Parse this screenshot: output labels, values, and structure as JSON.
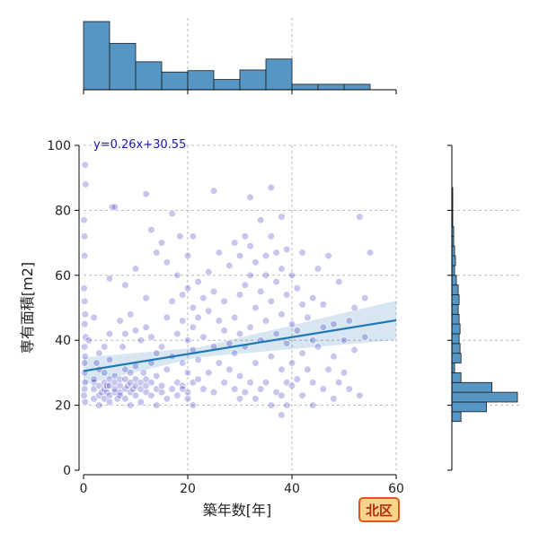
{
  "chart_data": {
    "type": "scatter",
    "xlabel": "築年数[年]",
    "ylabel": "専有面積[m2]",
    "xlim": [
      0,
      60
    ],
    "ylim": [
      0,
      100
    ],
    "x_ticks": [
      0,
      20,
      40,
      60
    ],
    "y_ticks": [
      0,
      20,
      40,
      60,
      80,
      100
    ],
    "grid": true,
    "point_color": "#0000b0",
    "line_color": "#1f77b4",
    "hist_color": "#5596c4",
    "regression": {
      "label": "y=0.26x+30.55",
      "slope": 0.26,
      "intercept": 30.55
    },
    "badge": {
      "label": "北区",
      "fill": "#fdd28a",
      "border": "#e0561c",
      "text_color": "#b02a0c"
    },
    "x_hist": {
      "bin_edges": [
        0,
        5,
        10,
        15,
        20,
        25,
        30,
        35,
        40,
        45,
        50,
        55
      ],
      "counts": [
        100,
        68,
        41,
        26,
        28,
        15,
        29,
        45,
        8,
        8,
        8
      ]
    },
    "y_hist": {
      "bin_edges": [
        15,
        18,
        21,
        24,
        27,
        30,
        33,
        36,
        39,
        42,
        45,
        48,
        51,
        54,
        57,
        60,
        63,
        66,
        69,
        72,
        75,
        78,
        81,
        84,
        87,
        90
      ],
      "counts": [
        10,
        38,
        72,
        44,
        10,
        3,
        10,
        9,
        8,
        9,
        8,
        7,
        8,
        7,
        5,
        3,
        4,
        3,
        2,
        2,
        1,
        1,
        1,
        1,
        0
      ]
    },
    "points": [
      [
        0.3,
        94
      ],
      [
        0.4,
        88
      ],
      [
        0.1,
        77
      ],
      [
        0.2,
        72
      ],
      [
        0.2,
        66
      ],
      [
        0.1,
        56
      ],
      [
        0.2,
        52
      ],
      [
        0.3,
        48
      ],
      [
        0.2,
        45
      ],
      [
        0.4,
        41
      ],
      [
        0.2,
        38
      ],
      [
        0.3,
        35
      ],
      [
        0.2,
        33
      ],
      [
        0.2,
        30
      ],
      [
        0.3,
        27
      ],
      [
        0.2,
        25
      ],
      [
        0.1,
        23
      ],
      [
        0.3,
        21
      ],
      [
        1,
        40
      ],
      [
        2,
        27
      ],
      [
        2,
        25
      ],
      [
        2,
        22
      ],
      [
        2,
        28
      ],
      [
        2.5,
        33
      ],
      [
        2,
        47
      ],
      [
        3,
        26
      ],
      [
        3,
        23
      ],
      [
        3,
        31
      ],
      [
        3,
        36
      ],
      [
        3.5,
        24
      ],
      [
        3,
        20
      ],
      [
        4,
        25
      ],
      [
        4,
        27
      ],
      [
        4,
        22
      ],
      [
        4,
        30
      ],
      [
        4,
        38
      ],
      [
        4.5,
        24
      ],
      [
        4.5,
        26
      ],
      [
        5,
        28
      ],
      [
        5,
        26
      ],
      [
        5,
        23
      ],
      [
        5,
        21
      ],
      [
        5,
        34
      ],
      [
        5,
        42
      ],
      [
        5.5,
        81
      ],
      [
        5,
        59
      ],
      [
        6,
        81
      ],
      [
        6,
        24
      ],
      [
        6,
        27
      ],
      [
        6,
        29
      ],
      [
        6,
        25
      ],
      [
        6.5,
        22
      ],
      [
        7,
        26
      ],
      [
        7,
        24
      ],
      [
        7,
        28
      ],
      [
        7,
        23
      ],
      [
        7,
        46
      ],
      [
        7.5,
        38
      ],
      [
        8,
        25
      ],
      [
        8,
        28
      ],
      [
        8,
        22
      ],
      [
        8,
        31
      ],
      [
        8,
        42
      ],
      [
        8,
        57
      ],
      [
        8.5,
        26
      ],
      [
        9,
        24
      ],
      [
        9,
        27
      ],
      [
        9,
        30
      ],
      [
        9,
        20
      ],
      [
        9,
        48
      ],
      [
        9.5,
        25
      ],
      [
        10,
        28
      ],
      [
        10,
        23
      ],
      [
        10,
        26
      ],
      [
        10,
        32
      ],
      [
        10,
        43
      ],
      [
        10,
        62
      ],
      [
        11,
        25
      ],
      [
        11,
        27
      ],
      [
        11,
        21
      ],
      [
        11,
        40
      ],
      [
        11.5,
        30
      ],
      [
        12,
        85
      ],
      [
        12,
        24
      ],
      [
        12,
        26
      ],
      [
        12,
        28
      ],
      [
        12,
        44
      ],
      [
        12,
        53
      ],
      [
        13,
        23
      ],
      [
        13,
        27
      ],
      [
        13,
        33
      ],
      [
        13,
        41
      ],
      [
        13,
        74
      ],
      [
        14,
        25
      ],
      [
        14,
        20
      ],
      [
        14,
        29
      ],
      [
        14,
        36
      ],
      [
        14,
        67
      ],
      [
        15,
        24
      ],
      [
        15,
        26
      ],
      [
        15,
        70
      ],
      [
        15,
        38
      ],
      [
        16,
        47
      ],
      [
        16,
        31
      ],
      [
        16,
        22
      ],
      [
        16,
        64
      ],
      [
        17,
        25
      ],
      [
        17,
        35
      ],
      [
        17,
        52
      ],
      [
        17,
        79
      ],
      [
        18,
        23
      ],
      [
        18,
        27
      ],
      [
        18,
        42
      ],
      [
        18,
        60
      ],
      [
        18.5,
        72
      ],
      [
        19,
        26
      ],
      [
        19,
        25
      ],
      [
        19,
        33
      ],
      [
        19,
        46
      ],
      [
        19,
        54
      ],
      [
        20,
        22
      ],
      [
        20,
        24
      ],
      [
        20,
        30
      ],
      [
        20,
        40
      ],
      [
        20,
        56
      ],
      [
        20,
        66
      ],
      [
        21,
        20
      ],
      [
        21,
        27
      ],
      [
        21,
        37
      ],
      [
        21,
        44
      ],
      [
        21,
        50
      ],
      [
        21,
        72
      ],
      [
        22,
        47
      ],
      [
        22,
        34
      ],
      [
        22,
        28
      ],
      [
        22,
        58
      ],
      [
        23,
        25
      ],
      [
        23,
        41
      ],
      [
        23,
        53
      ],
      [
        24,
        30
      ],
      [
        24,
        49
      ],
      [
        24,
        61
      ],
      [
        25,
        86
      ],
      [
        25,
        24
      ],
      [
        25,
        38
      ],
      [
        25,
        55
      ],
      [
        26,
        33
      ],
      [
        26,
        46
      ],
      [
        26,
        67
      ],
      [
        27,
        27
      ],
      [
        27,
        43
      ],
      [
        27,
        52
      ],
      [
        28,
        31
      ],
      [
        28,
        39
      ],
      [
        28,
        63
      ],
      [
        29,
        25
      ],
      [
        29,
        36
      ],
      [
        29,
        47
      ],
      [
        29,
        70
      ],
      [
        30,
        22
      ],
      [
        30,
        29
      ],
      [
        30,
        42
      ],
      [
        30,
        54
      ],
      [
        30,
        66
      ],
      [
        31,
        24
      ],
      [
        31,
        38
      ],
      [
        31,
        57
      ],
      [
        31,
        72
      ],
      [
        32,
        84
      ],
      [
        32,
        27
      ],
      [
        32,
        44
      ],
      [
        32,
        60
      ],
      [
        32,
        69
      ],
      [
        33,
        22
      ],
      [
        33,
        33
      ],
      [
        33,
        50
      ],
      [
        33,
        64
      ],
      [
        34,
        25
      ],
      [
        34,
        40
      ],
      [
        34,
        55
      ],
      [
        34,
        77
      ],
      [
        35,
        27
      ],
      [
        35,
        46
      ],
      [
        35,
        60
      ],
      [
        35,
        66
      ],
      [
        36,
        87
      ],
      [
        36,
        20
      ],
      [
        36,
        35
      ],
      [
        36,
        52
      ],
      [
        36,
        72
      ],
      [
        37,
        24
      ],
      [
        37,
        42
      ],
      [
        37,
        58
      ],
      [
        37,
        67
      ],
      [
        38,
        17
      ],
      [
        38,
        23
      ],
      [
        38,
        31
      ],
      [
        38,
        48
      ],
      [
        38,
        62
      ],
      [
        38,
        78
      ],
      [
        39,
        20
      ],
      [
        39,
        27
      ],
      [
        39,
        39
      ],
      [
        39,
        54
      ],
      [
        39,
        68
      ],
      [
        40,
        26
      ],
      [
        40,
        33
      ],
      [
        40,
        45
      ],
      [
        40,
        60
      ],
      [
        41,
        28
      ],
      [
        41,
        43
      ],
      [
        41,
        56
      ],
      [
        42,
        23
      ],
      [
        42,
        36
      ],
      [
        42,
        51
      ],
      [
        42,
        67
      ],
      [
        43,
        31
      ],
      [
        43,
        47
      ],
      [
        44,
        20
      ],
      [
        44,
        27
      ],
      [
        44,
        40
      ],
      [
        44,
        53
      ],
      [
        45,
        38
      ],
      [
        45,
        62
      ],
      [
        46,
        25
      ],
      [
        46,
        44
      ],
      [
        46,
        51
      ],
      [
        47,
        31
      ],
      [
        47,
        66
      ],
      [
        48,
        22
      ],
      [
        48,
        35
      ],
      [
        48,
        45
      ],
      [
        49,
        27
      ],
      [
        49,
        58
      ],
      [
        50,
        40
      ],
      [
        50,
        30
      ],
      [
        51,
        46
      ],
      [
        51,
        25
      ],
      [
        52,
        37
      ],
      [
        52,
        50
      ],
      [
        53,
        23
      ],
      [
        53,
        78
      ],
      [
        54,
        53
      ],
      [
        54,
        41
      ],
      [
        55,
        67
      ]
    ]
  }
}
